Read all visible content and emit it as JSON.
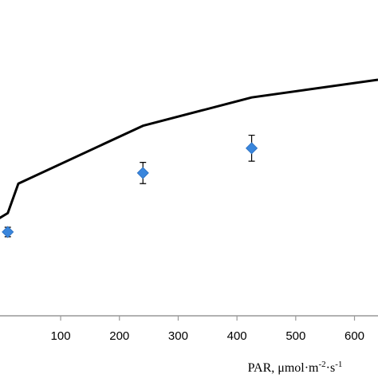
{
  "chart_data": {
    "type": "scatter",
    "xlabel_parts": {
      "base": "PAR, μmol·m",
      "sup1": "-2",
      "mid": "·s",
      "sup2": "-1"
    },
    "xlim": [
      -10,
      640
    ],
    "ylim": [
      0,
      100
    ],
    "xticks": [
      100,
      200,
      300,
      400,
      500,
      600
    ],
    "xtick_labels": [
      "100",
      "200",
      "300",
      "400",
      "500",
      "600"
    ],
    "first_tick_label": "100",
    "grid": false,
    "series": [
      {
        "kind": "line",
        "color": "#000000",
        "points": [
          [
            -10,
            40.5
          ],
          [
            10,
            43.5
          ],
          [
            28,
            56
          ],
          [
            240,
            80.5
          ],
          [
            425,
            92.5
          ],
          [
            640,
            100
          ]
        ]
      },
      {
        "kind": "markers",
        "marker": "diamond",
        "color": "#3a86dc",
        "points": [
          {
            "x": 10,
            "y": 35.5,
            "err": 2.0
          },
          {
            "x": 240,
            "y": 60.5,
            "err": 4.5
          },
          {
            "x": 425,
            "y": 71.0,
            "err": 5.5
          }
        ]
      }
    ]
  }
}
